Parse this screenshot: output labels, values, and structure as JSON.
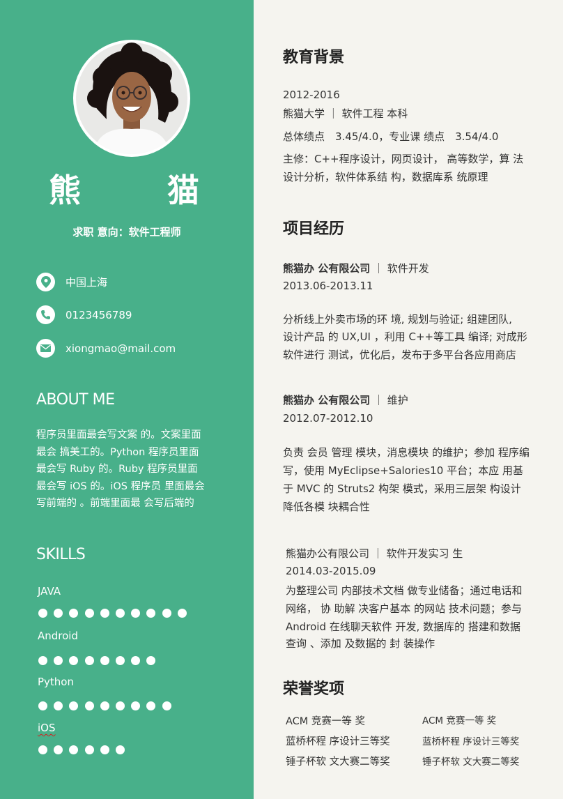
{
  "profile": {
    "name_part1": "熊",
    "name_part2": "猫",
    "job_intention": "求职 意向：软件工程师",
    "contacts": [
      {
        "icon": "location-pin-icon",
        "text": "中国上海"
      },
      {
        "icon": "phone-icon",
        "text": "0123456789"
      },
      {
        "icon": "mail-icon",
        "text": "xiongmao@mail.com"
      }
    ]
  },
  "about": {
    "heading": "ABOUT ME",
    "lines": [
      "程序员里面最会写文案 的。文案里面",
      "最会 搞美工的。Python 程序员里面",
      "最会写 Ruby 的。Ruby 程序员里面",
      "最会写 iOS 的。iOS 程序员 里面最会",
      "写前端的 。前端里面最 会写后端的"
    ]
  },
  "skills": {
    "heading": "SKILLS",
    "items": [
      {
        "name": "JAVA",
        "level": 10
      },
      {
        "name": "Android",
        "level": 8
      },
      {
        "name": "Python",
        "level": 9
      },
      {
        "name": "iOS",
        "level": 6
      }
    ]
  },
  "education": {
    "heading": "教育背景",
    "years": "2012-2016",
    "school": "熊猫大学 ｜ 软件工程 本科",
    "gpa": "总体绩点　3.45/4.0，专业课 绩点　3.54/4.0",
    "courses_1": "主修：C++程序设计，网页设计， 高等数学，算 法",
    "courses_2": "设计分析，软件体系结 构，数据库系 统原理"
  },
  "projects": {
    "heading": "项目经历",
    "p1": {
      "company": "熊猫办 公有限公司",
      "role": " ｜ 软件开发",
      "period": "2013.06-2013.11",
      "lines": [
        "分析线上外卖市场的环 境, 规划与验证; 组建团队,",
        "设计产品 的 UX,UI ，利用 C++等工具 编译; 对成形",
        "软件进行 测试，优化后，发布于多平台各应用商店"
      ]
    },
    "p2": {
      "company": "熊猫办 公有限公司",
      "role": " ｜ 维护",
      "period": "2012.07-2012.10",
      "lines": [
        "负责 会员 管理 模块，消息模块 的维护；参加 程序编",
        "写，使用 MyEclipse+Salories10 平台；本应 用基",
        "于 MVC  的 Struts2 构架 模式，采用三层架 构设计",
        "降低各模 块耦合性"
      ]
    },
    "p3": {
      "title": "熊猫办公有限公司 ｜ 软件开发实习 生",
      "period": "2014.03-2015.09",
      "lines": [
        "为整理公司 内部技术文档 做专业储备；通过电话和",
        "网络， 协 助解 决客户基本 的网站 技术问题；参与",
        "Android 在线聊天软件 开发, 数据库的 搭建和数据",
        "查询 、添加 及数据的 封 装操作"
      ]
    }
  },
  "honors": {
    "heading": "荣誉奖项",
    "left": [
      "ACM 竞赛一等 奖",
      "蓝桥杯程 序设计三等奖",
      "锤子杯软 文大赛二等奖"
    ],
    "right": [
      "ACM 竞赛一等 奖",
      "蓝桥杯程 序设计三等奖",
      "锤子杯软 文大赛二等奖"
    ]
  },
  "colors": {
    "sidebar": "#48b08a",
    "main_bg": "#f5f4ef",
    "text": "#333333"
  }
}
